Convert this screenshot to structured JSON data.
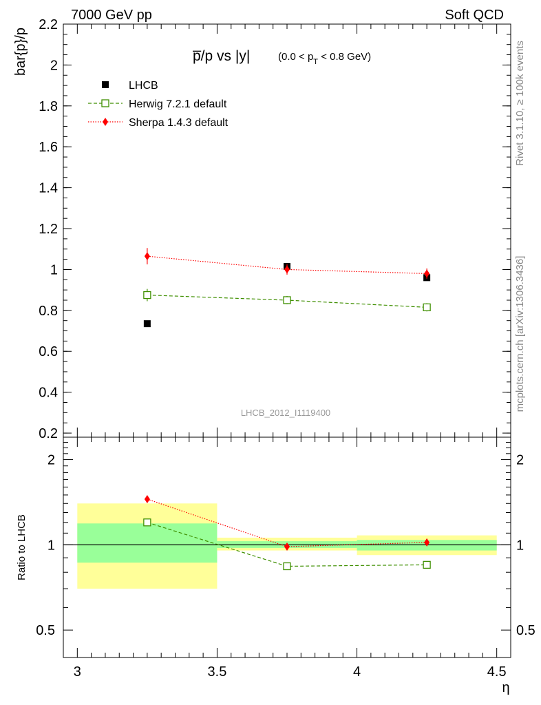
{
  "header": {
    "energy_label": "7000 GeV pp",
    "category_label": "Soft QCD"
  },
  "side": {
    "rivet_label": "Rivet 3.1.10, ≥ 100k events",
    "mcplots_label": "mcplots.cern.ch [arXiv:1306.3436]"
  },
  "watermark": "LHCB_2012_I1119400",
  "chart_data": [
    {
      "type": "scatter",
      "title_main": "p̅/p vs |y|",
      "title_range_left": "(0.0 < p",
      "title_range_sub": "T",
      "title_range_right": " < 0.8 GeV)",
      "ylabel": "bar{p}/p",
      "ylim": [
        0.18,
        2.2
      ],
      "yticks": [
        "0.2",
        "0.4",
        "0.6",
        "0.8",
        "1",
        "1.2",
        "1.4",
        "1.6",
        "1.8",
        "2",
        "2.2"
      ],
      "xlim": [
        2.95,
        4.55
      ],
      "legend_position": "top-left",
      "series": [
        {
          "name": "LHCB",
          "marker": "filled-square",
          "color": "#000000",
          "x": [
            3.25,
            3.75,
            4.25
          ],
          "y": [
            0.735,
            1.015,
            0.96
          ]
        },
        {
          "name": "Herwig 7.2.1 default",
          "marker": "open-square",
          "line": "dashed",
          "color": "#3f8f00",
          "x": [
            3.25,
            3.75,
            4.25
          ],
          "y": [
            0.875,
            0.85,
            0.815
          ],
          "err": [
            0.03,
            0.02,
            0.02
          ]
        },
        {
          "name": "Sherpa 1.4.3 default",
          "marker": "diamond",
          "line": "dotted",
          "color": "#ff0000",
          "x": [
            3.25,
            3.75,
            4.25
          ],
          "y": [
            1.065,
            1.0,
            0.98
          ],
          "err": [
            0.04,
            0.025,
            0.025
          ]
        }
      ]
    },
    {
      "type": "scatter",
      "ylabel": "Ratio to LHCB",
      "xlabel": "η",
      "yscale": "log",
      "ylim": [
        0.4,
        2.4
      ],
      "yticks": [
        "0.5",
        "1",
        "2"
      ],
      "xlim": [
        2.95,
        4.55
      ],
      "xticks": [
        "3",
        "3.5",
        "4",
        "4.5"
      ],
      "reference_line": 1,
      "bands": [
        {
          "x": [
            3.0,
            3.5
          ],
          "inner": [
            0.865,
            1.19
          ],
          "outer": [
            0.7,
            1.4
          ]
        },
        {
          "x": [
            3.5,
            4.0
          ],
          "inner": [
            0.975,
            1.03
          ],
          "outer": [
            0.955,
            1.06
          ]
        },
        {
          "x": [
            4.0,
            4.5
          ],
          "inner": [
            0.955,
            1.04
          ],
          "outer": [
            0.92,
            1.08
          ]
        }
      ],
      "band_colors": {
        "inner": "#99ff99",
        "outer": "#ffff99"
      },
      "series": [
        {
          "name": "Herwig 7.2.1 default",
          "marker": "open-square",
          "line": "dashed",
          "color": "#3f8f00",
          "x": [
            3.25,
            3.75,
            4.25
          ],
          "y": [
            1.2,
            0.84,
            0.85
          ],
          "err": [
            0.02,
            0.01,
            0.01
          ]
        },
        {
          "name": "Sherpa 1.4.3 default",
          "marker": "diamond",
          "line": "dotted",
          "color": "#ff0000",
          "x": [
            3.25,
            3.75,
            4.25
          ],
          "y": [
            1.45,
            0.985,
            1.02
          ],
          "err": [
            0.04,
            0.02,
            0.015
          ]
        }
      ]
    }
  ]
}
